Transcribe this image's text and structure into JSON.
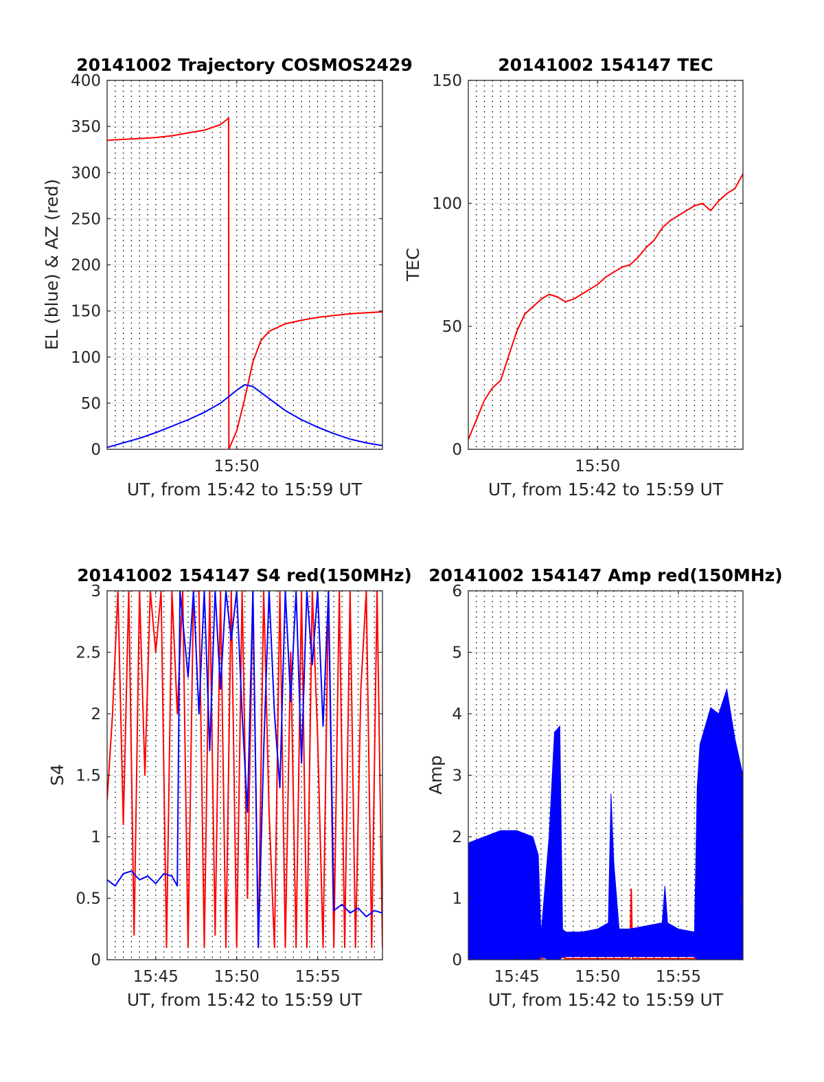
{
  "chart_data": [
    {
      "type": "line",
      "title": "20141002 Trajectory COSMOS2429",
      "xlabel": "UT, from 15:42 to 15:59 UT",
      "ylabel": "EL (blue) & AZ (red)",
      "xlim": [
        "15:42",
        "15:59"
      ],
      "xticks": [
        "15:50"
      ],
      "ylim": [
        0,
        400
      ],
      "yticks": [
        "0",
        "50",
        "100",
        "150",
        "200",
        "250",
        "300",
        "350",
        "400"
      ],
      "grid": true,
      "series": [
        {
          "color": "#ff0000",
          "x": [
            "15:42:00",
            "15:43:00",
            "15:44:00",
            "15:45:00",
            "15:46:00",
            "15:47:00",
            "15:48:00",
            "15:49:00",
            "15:49:30",
            "15:49:31",
            "15:50:00",
            "15:50:30",
            "15:51:00",
            "15:51:30",
            "15:52:00",
            "15:53:00",
            "15:54:00",
            "15:55:00",
            "15:56:00",
            "15:57:00",
            "15:58:00",
            "15:59:00"
          ],
          "values": [
            335,
            336,
            337,
            338,
            340,
            343,
            346,
            352,
            359,
            0,
            20,
            55,
            95,
            118,
            128,
            136,
            140,
            143,
            145,
            147,
            148,
            149
          ]
        },
        {
          "color": "#0000ff",
          "x": [
            "15:42:00",
            "15:43:00",
            "15:44:00",
            "15:45:00",
            "15:46:00",
            "15:47:00",
            "15:48:00",
            "15:49:00",
            "15:50:00",
            "15:50:30",
            "15:51:00",
            "15:52:00",
            "15:53:00",
            "15:54:00",
            "15:55:00",
            "15:56:00",
            "15:57:00",
            "15:58:00",
            "15:59:00"
          ],
          "values": [
            2,
            7,
            12,
            18,
            25,
            32,
            40,
            50,
            64,
            70,
            68,
            55,
            42,
            32,
            24,
            17,
            11,
            7,
            4
          ]
        }
      ]
    },
    {
      "type": "line",
      "title": "20141002 154147 TEC",
      "xlabel": "UT, from 15:42 to 15:59 UT",
      "ylabel": "TEC",
      "xlim": [
        "15:42",
        "15:59"
      ],
      "xticks": [
        "15:50"
      ],
      "ylim": [
        0,
        150
      ],
      "yticks": [
        "0",
        "50",
        "100",
        "150"
      ],
      "grid": true,
      "series": [
        {
          "color": "#ff0000",
          "x": [
            "15:42:00",
            "15:42:30",
            "15:43:00",
            "15:43:30",
            "15:44:00",
            "15:44:30",
            "15:45:00",
            "15:45:30",
            "15:46:00",
            "15:46:30",
            "15:47:00",
            "15:47:30",
            "15:48:00",
            "15:48:30",
            "15:49:00",
            "15:49:30",
            "15:50:00",
            "15:50:30",
            "15:51:00",
            "15:51:30",
            "15:52:00",
            "15:52:30",
            "15:53:00",
            "15:53:30",
            "15:54:00",
            "15:54:30",
            "15:55:00",
            "15:55:30",
            "15:56:00",
            "15:56:30",
            "15:57:00",
            "15:57:30",
            "15:58:00",
            "15:58:30",
            "15:59:00"
          ],
          "values": [
            4,
            12,
            20,
            25,
            28,
            38,
            48,
            55,
            58,
            61,
            63,
            62,
            60,
            61,
            63,
            65,
            67,
            70,
            72,
            74,
            75,
            78,
            82,
            85,
            90,
            93,
            95,
            97,
            99,
            100,
            97,
            101,
            104,
            106,
            112
          ]
        }
      ]
    },
    {
      "type": "line",
      "title": "20141002 154147 S4 red(150MHz)",
      "xlabel": "UT, from 15:42 to 15:59 UT",
      "ylabel": "S4",
      "xlim": [
        "15:42",
        "15:59"
      ],
      "xticks": [
        "15:45",
        "15:50",
        "15:55"
      ],
      "ylim": [
        0,
        3
      ],
      "yticks": [
        "0",
        "0.5",
        "1",
        "1.5",
        "2",
        "2.5",
        "3"
      ],
      "grid": true,
      "series": [
        {
          "color": "#ff0000",
          "x": [
            "15:42:00",
            "15:42:20",
            "15:42:40",
            "15:43:00",
            "15:43:20",
            "15:43:40",
            "15:44:00",
            "15:44:20",
            "15:44:40",
            "15:45:00",
            "15:45:20",
            "15:45:40",
            "15:46:00",
            "15:46:20",
            "15:46:40",
            "15:47:00",
            "15:47:20",
            "15:47:40",
            "15:48:00",
            "15:48:20",
            "15:48:40",
            "15:49:00",
            "15:49:20",
            "15:49:40",
            "15:50:00",
            "15:50:20",
            "15:50:40",
            "15:51:00",
            "15:51:20",
            "15:51:40",
            "15:52:00",
            "15:52:20",
            "15:52:40",
            "15:53:00",
            "15:53:20",
            "15:53:40",
            "15:54:00",
            "15:54:20",
            "15:54:40",
            "15:55:00",
            "15:55:20",
            "15:55:40",
            "15:56:00",
            "15:56:20",
            "15:56:40",
            "15:57:00",
            "15:57:20",
            "15:57:40",
            "15:58:00",
            "15:58:20",
            "15:58:40",
            "15:59:00"
          ],
          "values": [
            1.3,
            2.0,
            3,
            1.1,
            3,
            0.2,
            3,
            1.5,
            3,
            2.5,
            3,
            0.1,
            3,
            2.0,
            3,
            0.1,
            3,
            3,
            0.1,
            3,
            0.2,
            3,
            0.1,
            3,
            0.1,
            3,
            0.5,
            3,
            0.1,
            3,
            1.2,
            0.1,
            3,
            0.1,
            2.5,
            0.1,
            3,
            0.1,
            3,
            1.8,
            0.1,
            3,
            0.1,
            3,
            0.1,
            3,
            0.1,
            2.2,
            3,
            0.1,
            3,
            0.1
          ]
        },
        {
          "color": "#0000ff",
          "x": [
            "15:42:00",
            "15:42:30",
            "15:43:00",
            "15:43:30",
            "15:44:00",
            "15:44:30",
            "15:45:00",
            "15:45:30",
            "15:46:00",
            "15:46:20",
            "15:46:30",
            "15:47:00",
            "15:47:20",
            "15:47:40",
            "15:48:00",
            "15:48:20",
            "15:48:40",
            "15:49:00",
            "15:49:20",
            "15:49:40",
            "15:50:00",
            "15:50:20",
            "15:50:40",
            "15:51:00",
            "15:51:20",
            "15:51:40",
            "15:52:00",
            "15:52:20",
            "15:52:40",
            "15:53:00",
            "15:53:20",
            "15:53:40",
            "15:54:00",
            "15:54:20",
            "15:54:40",
            "15:55:00",
            "15:55:20",
            "15:55:40",
            "15:56:00",
            "15:56:30",
            "15:57:00",
            "15:57:30",
            "15:58:00",
            "15:58:30",
            "15:59:00"
          ],
          "values": [
            0.65,
            0.6,
            0.7,
            0.72,
            0.65,
            0.68,
            0.62,
            0.7,
            0.68,
            0.6,
            3,
            2.3,
            3,
            2.0,
            3,
            1.7,
            3,
            2.2,
            3,
            2.6,
            3,
            2.0,
            1.2,
            3,
            0.1,
            1.7,
            3,
            2.0,
            1.4,
            3,
            2.1,
            3,
            1.6,
            3,
            2.4,
            3,
            1.9,
            3,
            0.4,
            0.45,
            0.38,
            0.42,
            0.35,
            0.4,
            0.38
          ]
        }
      ]
    },
    {
      "type": "line",
      "title": "20141002 154147 Amp red(150MHz)",
      "xlabel": "UT, from 15:42 to 15:59 UT",
      "ylabel": "Amp",
      "xlim": [
        "15:42",
        "15:59"
      ],
      "xticks": [
        "15:45",
        "15:50",
        "15:55"
      ],
      "ylim": [
        0,
        6
      ],
      "yticks": [
        "0",
        "1",
        "2",
        "3",
        "4",
        "5",
        "6"
      ],
      "grid": true,
      "series": [
        {
          "color": "#ff0000",
          "x": [
            "15:42:00",
            "15:46:30",
            "15:47:00",
            "15:47:30",
            "15:48:00",
            "15:52:00",
            "15:52:05",
            "15:52:10",
            "15:56:20",
            "15:56:30",
            "15:59:00"
          ],
          "values": [
            0.02,
            0.02,
            0.05,
            0.08,
            0.02,
            0.02,
            1.15,
            0.02,
            0.02,
            0.06,
            0.06
          ]
        },
        {
          "color": "#0000ff",
          "band": true,
          "x": [
            "15:42:00",
            "15:43:00",
            "15:44:00",
            "15:45:00",
            "15:46:00",
            "15:46:20",
            "15:46:30",
            "15:47:00",
            "15:47:20",
            "15:47:40",
            "15:47:50",
            "15:48:00",
            "15:49:00",
            "15:50:00",
            "15:50:40",
            "15:50:50",
            "15:51:00",
            "15:51:20",
            "15:52:00",
            "15:53:00",
            "15:54:00",
            "15:54:10",
            "15:54:20",
            "15:55:00",
            "15:56:00",
            "15:56:10",
            "15:56:20",
            "15:57:00",
            "15:57:30",
            "15:58:00",
            "15:58:30",
            "15:59:00"
          ],
          "low": [
            0,
            0,
            0,
            0,
            0,
            0,
            0.05,
            0,
            0,
            0,
            0.05,
            0.05,
            0.05,
            0.05,
            0.05,
            0.05,
            0.05,
            0.05,
            0.05,
            0.05,
            0.05,
            0.05,
            0.05,
            0.05,
            0.05,
            0,
            0,
            0,
            0,
            0,
            0,
            0
          ],
          "high": [
            1.9,
            2.0,
            2.1,
            2.1,
            2.0,
            1.7,
            0.4,
            2.0,
            3.7,
            3.8,
            0.5,
            0.45,
            0.45,
            0.5,
            0.6,
            2.7,
            1.6,
            0.5,
            0.5,
            0.55,
            0.6,
            1.2,
            0.6,
            0.5,
            0.45,
            2.8,
            3.5,
            4.1,
            4.0,
            4.4,
            3.6,
            3.0
          ]
        }
      ]
    }
  ]
}
